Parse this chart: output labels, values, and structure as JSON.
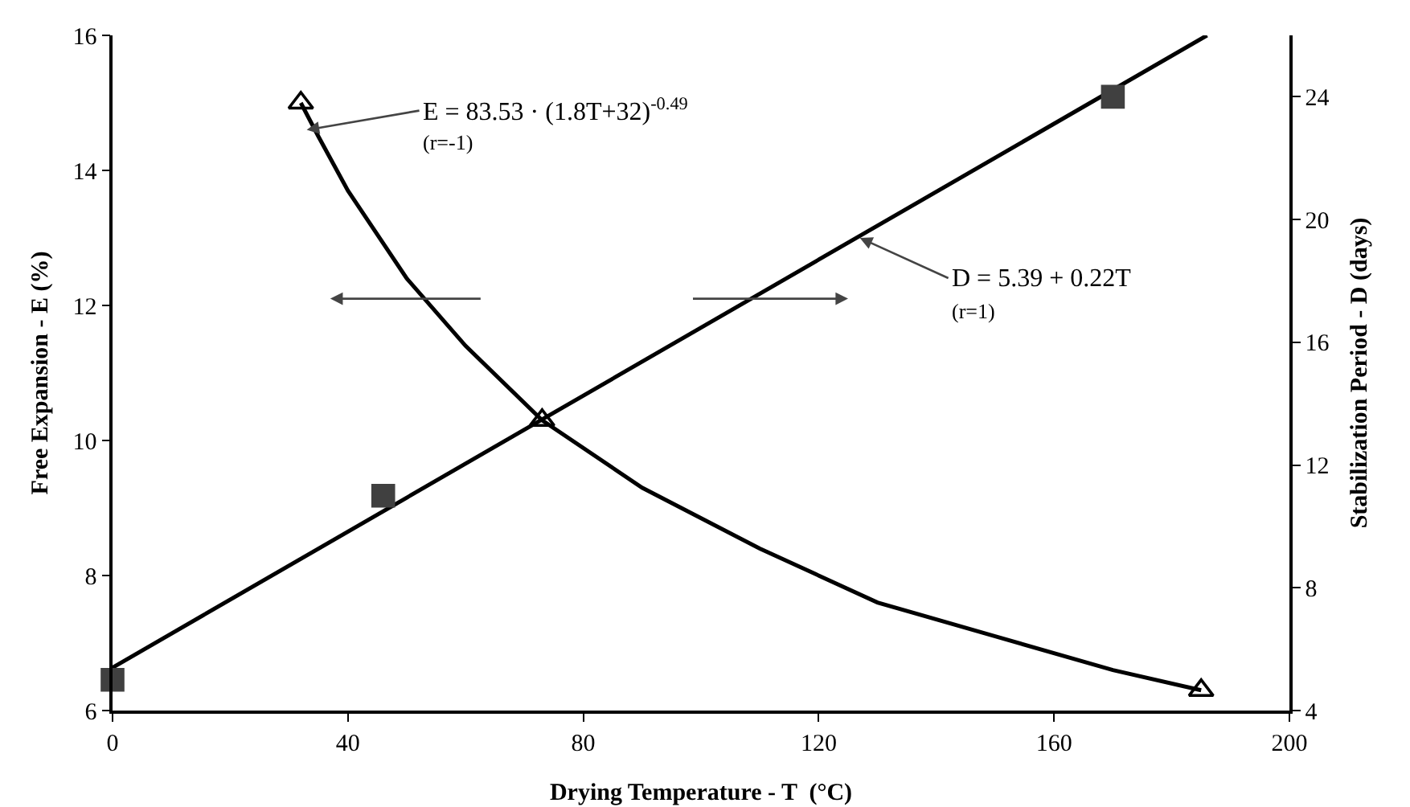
{
  "chart_data": {
    "type": "scatter",
    "xlabel": "Drying Temperature - T  (°C)",
    "ylabel": "Free Expansion - E (%)",
    "y2label": "Stabilization Period - D (days)",
    "xlim": [
      0,
      200
    ],
    "xticks": [
      0,
      40,
      80,
      120,
      160,
      200
    ],
    "ylim": [
      6,
      16
    ],
    "yticks": [
      6,
      8,
      10,
      12,
      14,
      16
    ],
    "y2lim": [
      4,
      26
    ],
    "y2ticks": [
      4,
      8,
      12,
      16,
      20,
      24
    ],
    "series": [
      {
        "type": "line",
        "color": "#000000",
        "marker": "none",
        "line_style": "solid",
        "x": [
          32,
          35,
          40,
          50,
          60,
          73,
          90,
          110,
          130,
          150,
          170,
          185
        ],
        "values": [
          15,
          14.5,
          13.7,
          12.4,
          11.4,
          10.3,
          9.3,
          8.4,
          7.6,
          7.1,
          6.6,
          6.3
        ]
      },
      {
        "color": "#000000",
        "marker": "triangle",
        "x": [
          32,
          73,
          185
        ],
        "values": [
          15,
          10.3,
          6.3
        ]
      },
      {
        "type": "line",
        "axis": "y2",
        "color": "#000000",
        "marker": "none",
        "line_style": "solid",
        "x": [
          0,
          186
        ],
        "values": [
          5.4,
          26
        ]
      },
      {
        "axis": "y2",
        "color": "#404040",
        "marker": "square",
        "x": [
          0,
          46,
          170
        ],
        "values": [
          5,
          11,
          24
        ]
      }
    ],
    "annotations": [
      {
        "text": "E = 83.53 · (1.8T+32)$^{-0.49}$",
        "x": 33,
        "y": 14.6
      },
      "(r=-1)",
      {
        "text": "D = 5.39 + 0.22T",
        "x": 127,
        "y": 13
      },
      "(r=1)"
    ]
  }
}
